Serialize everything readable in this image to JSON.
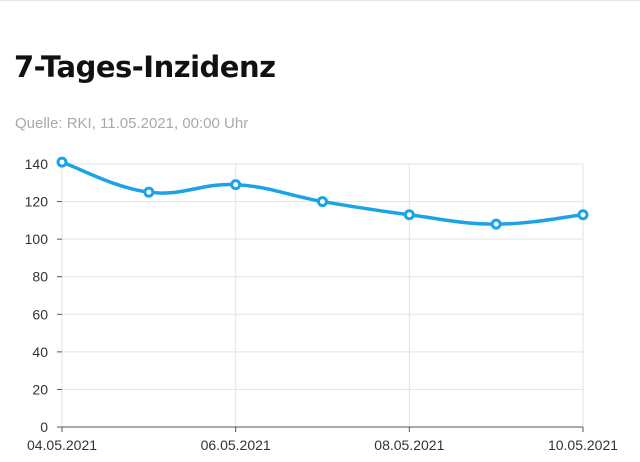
{
  "header": {
    "title": "7-Tages-Inzidenz",
    "source": "Quelle: RKI, 11.05.2021, 00:00 Uhr"
  },
  "colors": {
    "line": "#1aa3e8",
    "grid": "#e3e3e3",
    "axis": "#555555"
  },
  "chart_data": {
    "type": "line",
    "title": "7-Tages-Inzidenz",
    "x": [
      "04.05.2021",
      "05.05.2021",
      "06.05.2021",
      "07.05.2021",
      "08.05.2021",
      "09.05.2021",
      "10.05.2021"
    ],
    "x_tick_labels": [
      "04.05.2021",
      "06.05.2021",
      "08.05.2021",
      "10.05.2021"
    ],
    "y_tick_labels": [
      "0",
      "20",
      "40",
      "60",
      "80",
      "100",
      "120",
      "140"
    ],
    "series": [
      {
        "values": [
          141,
          125,
          129,
          120,
          113,
          108,
          113
        ]
      }
    ],
    "ylim": [
      0,
      140
    ],
    "grid": true,
    "legend": "none"
  }
}
